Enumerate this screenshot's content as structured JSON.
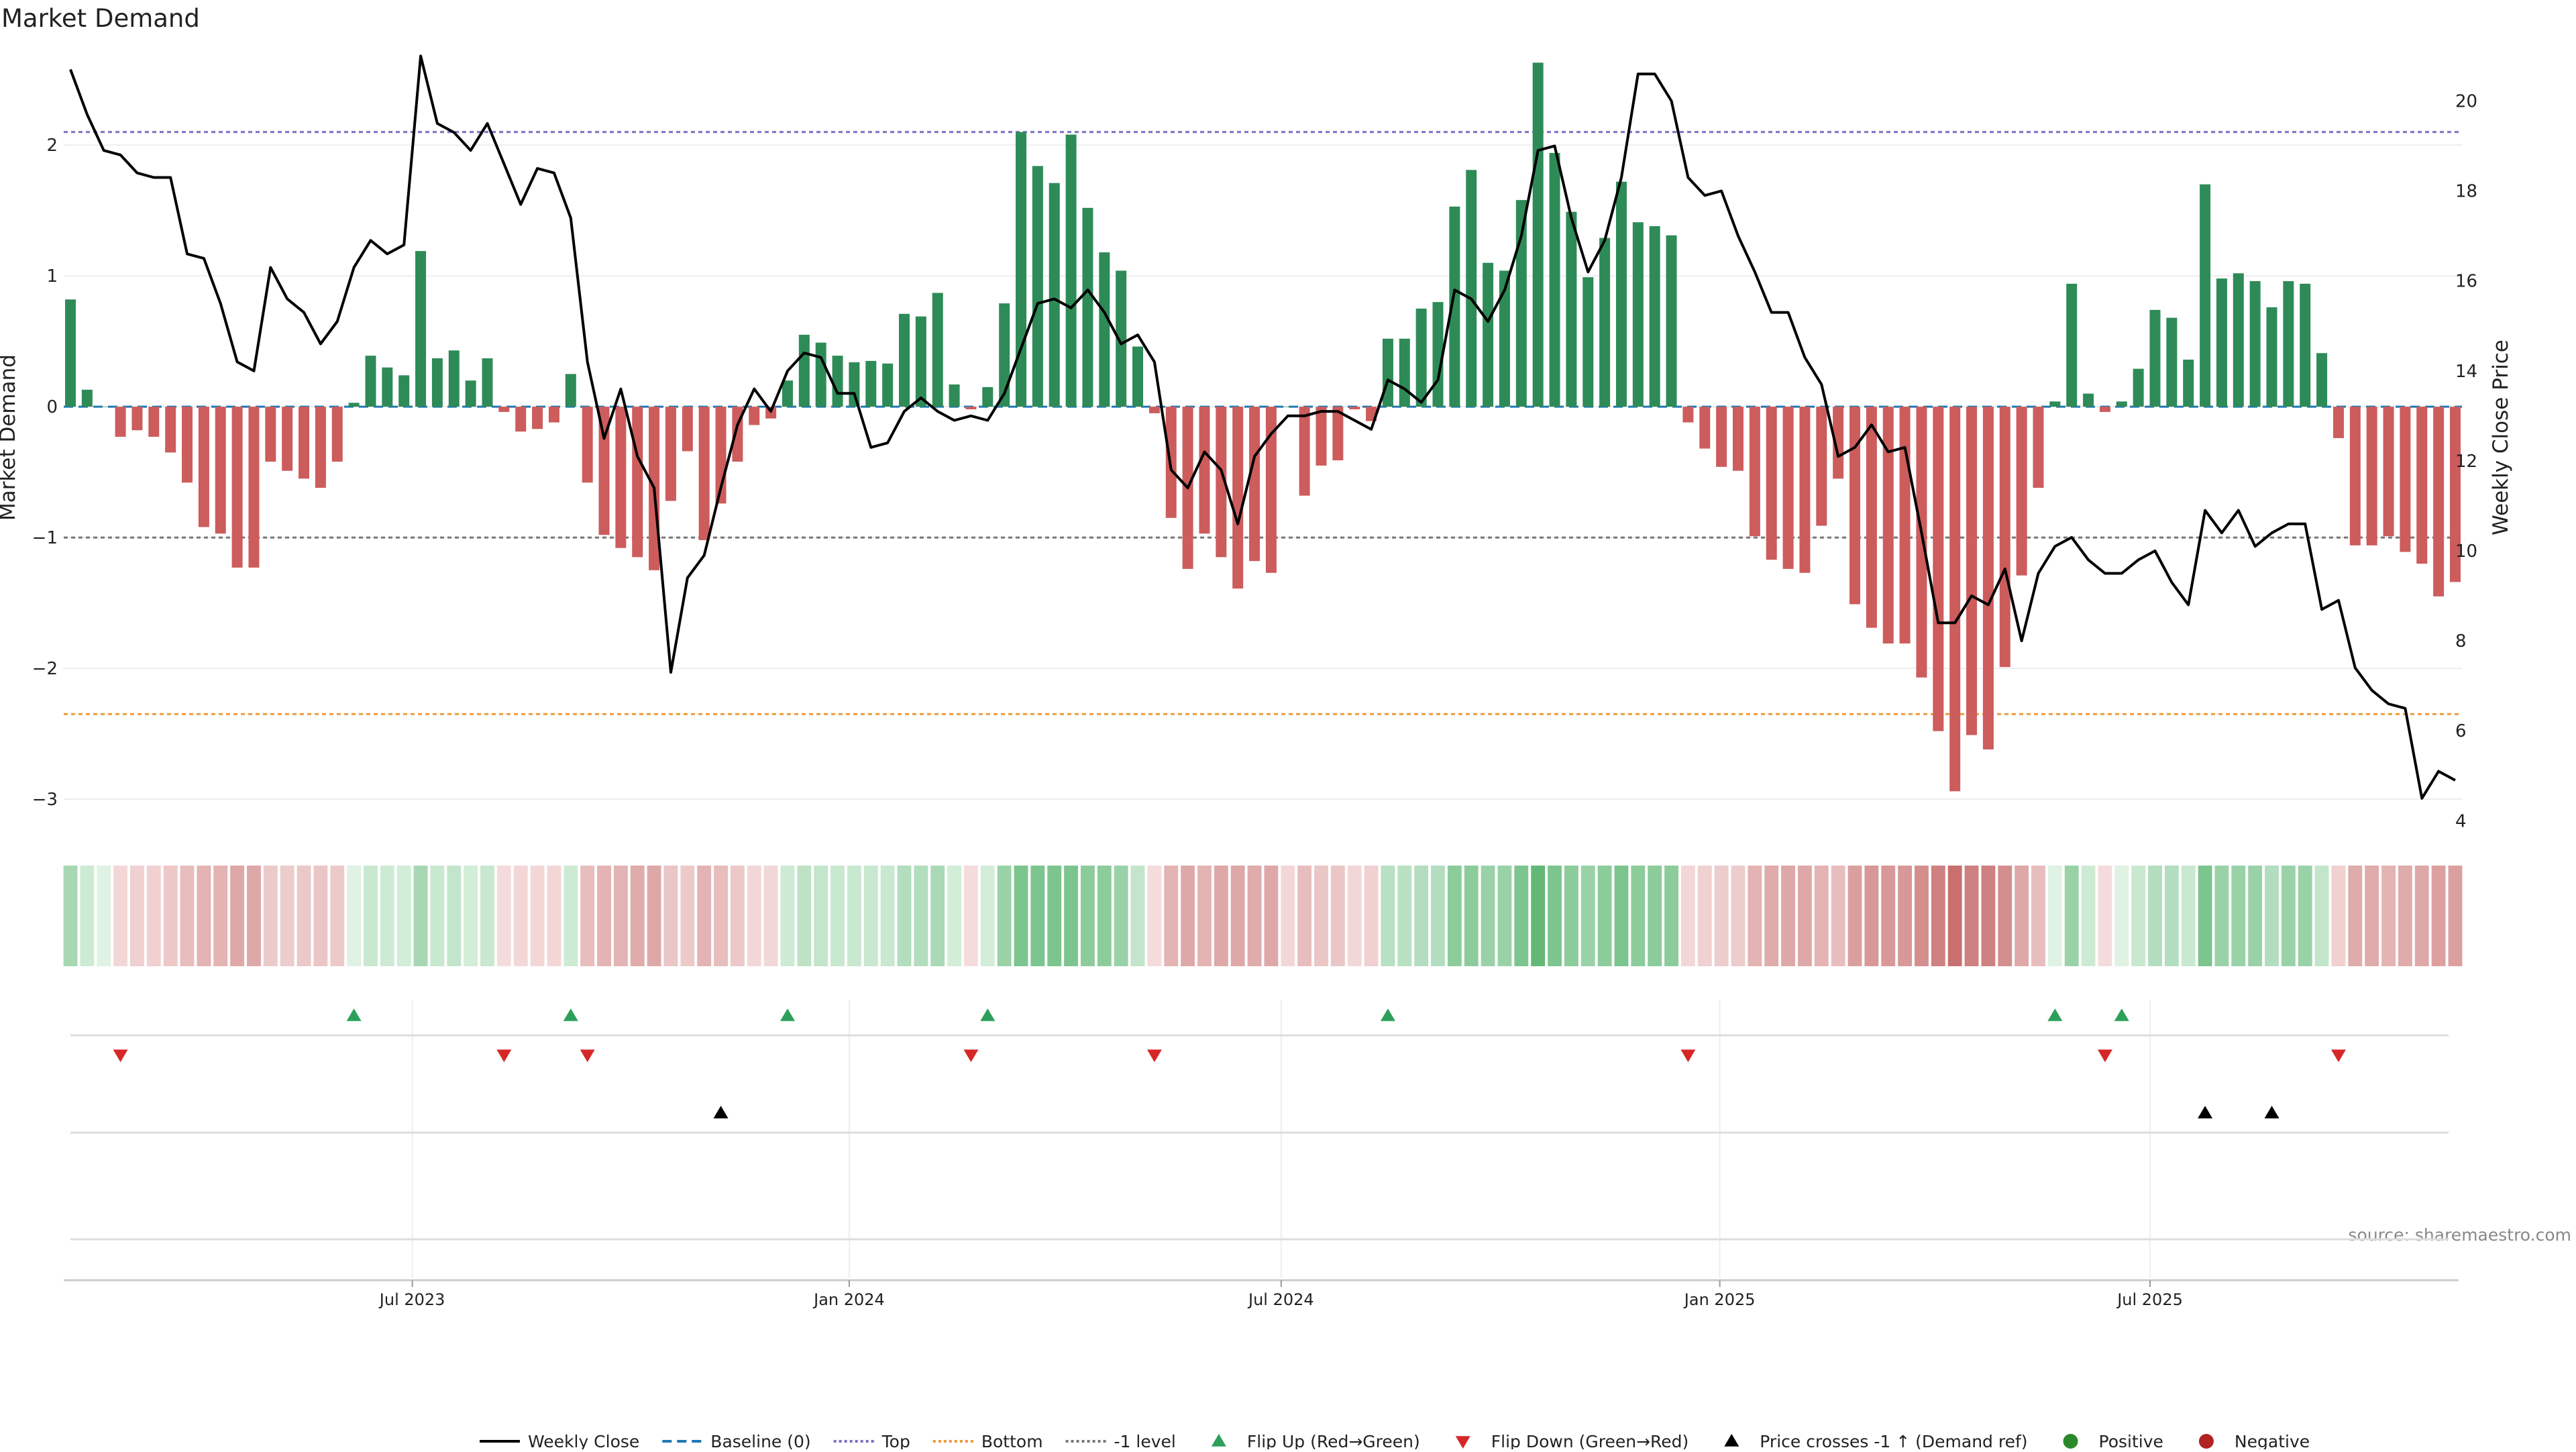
{
  "chart_data": {
    "type": "bar",
    "title": "Market Demand",
    "ylabel": "Market Demand",
    "y2label": "Weekly Close Price",
    "ylim": [
      -3.2,
      2.75
    ],
    "y2lim": [
      3.9,
      21.2
    ],
    "yticks": [
      2,
      1,
      0,
      -1,
      -2,
      -3
    ],
    "ytick_labels": [
      "2",
      "1",
      "0",
      "−1",
      "−2",
      "−3"
    ],
    "y2ticks": [
      20,
      18,
      16,
      14,
      12,
      10,
      8,
      6,
      4
    ],
    "reference_lines": {
      "top": 2.1,
      "bottom": -2.35,
      "minus_one": -1,
      "baseline": 0
    },
    "x_ticks": [
      {
        "label": "Jul 2023",
        "week": 20.5
      },
      {
        "label": "Jan 2024",
        "week": 46.7
      },
      {
        "label": "Jul 2024",
        "week": 72.6
      },
      {
        "label": "Jan 2025",
        "week": 98.9
      },
      {
        "label": "Jul 2025",
        "week": 124.7
      }
    ],
    "demand": [
      0.82,
      0.13,
      0.0,
      -0.23,
      -0.18,
      -0.23,
      -0.35,
      -0.58,
      -0.92,
      -0.97,
      -1.23,
      -1.23,
      -0.42,
      -0.49,
      -0.55,
      -0.62,
      -0.42,
      0.03,
      0.39,
      0.3,
      0.24,
      1.19,
      0.37,
      0.43,
      0.2,
      0.37,
      -0.04,
      -0.19,
      -0.17,
      -0.12,
      0.25,
      -0.58,
      -0.98,
      -1.08,
      -1.15,
      -1.25,
      -0.72,
      -0.34,
      -1.02,
      -0.74,
      -0.42,
      -0.14,
      -0.09,
      0.2,
      0.55,
      0.49,
      0.39,
      0.34,
      0.35,
      0.33,
      0.71,
      0.69,
      0.87,
      0.17,
      -0.02,
      0.15,
      0.79,
      2.1,
      1.84,
      1.71,
      2.08,
      1.52,
      1.18,
      1.04,
      0.46,
      -0.05,
      -0.85,
      -1.24,
      -0.97,
      -1.15,
      -1.39,
      -1.18,
      -1.27,
      0.0,
      -0.68,
      -0.45,
      -0.41,
      -0.02,
      -0.11,
      0.52,
      0.52,
      0.75,
      0.8,
      1.53,
      1.81,
      1.1,
      1.04,
      1.58,
      2.63,
      1.94,
      1.49,
      0.99,
      1.29,
      1.72,
      1.41,
      1.38,
      1.31,
      -0.12,
      -0.32,
      -0.46,
      -0.49,
      -0.99,
      -1.17,
      -1.24,
      -1.27,
      -0.91,
      -0.55,
      -1.51,
      -1.69,
      -1.81,
      -1.81,
      -2.07,
      -2.48,
      -2.94,
      -2.51,
      -2.62,
      -1.99,
      -1.29,
      -0.62,
      0.04,
      0.94,
      0.1,
      -0.04,
      0.04,
      0.29,
      0.74,
      0.68,
      0.36,
      1.7,
      0.98,
      1.02,
      0.96,
      0.76,
      0.96,
      0.94,
      0.41,
      -0.24,
      -1.06,
      -1.06,
      -0.99,
      -1.11,
      -1.2,
      -1.45,
      -1.34
    ],
    "price": [
      20.7,
      19.7,
      18.9,
      18.8,
      18.4,
      18.3,
      18.3,
      16.6,
      16.5,
      15.5,
      14.2,
      14.0,
      16.3,
      15.6,
      15.3,
      14.6,
      15.1,
      16.3,
      16.9,
      16.6,
      16.8,
      21.0,
      19.5,
      19.3,
      18.9,
      19.5,
      18.6,
      17.7,
      18.5,
      18.4,
      17.4,
      14.2,
      12.5,
      13.6,
      12.1,
      11.4,
      7.3,
      9.4,
      9.9,
      11.4,
      12.8,
      13.6,
      13.1,
      14.0,
      14.4,
      14.3,
      13.5,
      13.5,
      12.3,
      12.4,
      13.1,
      13.4,
      13.1,
      12.9,
      13.0,
      12.9,
      13.5,
      14.5,
      15.5,
      15.6,
      15.4,
      15.8,
      15.3,
      14.6,
      14.8,
      14.2,
      11.8,
      11.4,
      12.2,
      11.8,
      10.6,
      12.1,
      12.6,
      13.0,
      13.0,
      13.1,
      13.1,
      12.9,
      12.7,
      13.8,
      13.6,
      13.3,
      13.8,
      15.8,
      15.6,
      15.1,
      15.8,
      17.0,
      18.9,
      19.0,
      17.4,
      16.2,
      16.9,
      18.3,
      20.6,
      20.6,
      20.0,
      18.3,
      17.9,
      18.0,
      17.0,
      16.2,
      15.3,
      15.3,
      14.3,
      13.7,
      12.1,
      12.3,
      12.8,
      12.2,
      12.3,
      10.4,
      8.4,
      8.4,
      9.0,
      8.8,
      9.6,
      8.0,
      9.5,
      10.1,
      10.3,
      9.8,
      9.5,
      9.5,
      9.8,
      10.0,
      9.3,
      8.8,
      10.9,
      10.4,
      10.9,
      10.1,
      10.4,
      10.6,
      10.6,
      8.7,
      8.9,
      7.4,
      6.9,
      6.6,
      6.5,
      4.5,
      5.1,
      4.9
    ],
    "strip_shades": [
      "#a7d8b3",
      "#cdebd4",
      "#dff2e3",
      "#f3d7d7",
      "#f0d0d0",
      "#f0d0d0",
      "#eec8c8",
      "#e8bdbd",
      "#e4b3b3",
      "#e4b3b3",
      "#dfa8a8",
      "#dfa8a8",
      "#edcaca",
      "#eccccc",
      "#ecc8c8",
      "#eac6c6",
      "#edcaca",
      "#dff2e3",
      "#c8e8cf",
      "#cdebd4",
      "#d2edd8",
      "#a7d8b3",
      "#c8e8cf",
      "#c3e5cb",
      "#d2edd8",
      "#c8e8cf",
      "#f5dcdc",
      "#f3d7d7",
      "#f3d7d7",
      "#f3d7d7",
      "#cdebd4",
      "#e8bdbd",
      "#e4b3b3",
      "#e4b3b3",
      "#e0abab",
      "#dfa8a8",
      "#eac6c6",
      "#edcaca",
      "#e4b3b3",
      "#e8bdbd",
      "#ecc8c8",
      "#f3d7d7",
      "#f3d7d7",
      "#cdebd4",
      "#bde2c6",
      "#c3e5cb",
      "#c8e8cf",
      "#c8e8cf",
      "#c8e8cf",
      "#c8e8cf",
      "#b3ddbf",
      "#b3ddbf",
      "#aad9b6",
      "#d2edd8",
      "#f5dcdc",
      "#d2edd8",
      "#9ad2a8",
      "#7cc58e",
      "#7cc58e",
      "#7cc58e",
      "#7cc58e",
      "#8ccc9b",
      "#8ccc9b",
      "#9ad2a8",
      "#c3e5cb",
      "#f5dcdc",
      "#e4b3b3",
      "#dfa8a8",
      "#e4b3b3",
      "#dfa8a8",
      "#dfa8a8",
      "#e0abab",
      "#dfa8a8",
      "#f3d7d7",
      "#e8bdbd",
      "#eac6c6",
      "#eac6c6",
      "#f3d7d7",
      "#f0d0d0",
      "#b8e0c2",
      "#b8e0c2",
      "#b3ddbf",
      "#b3ddbf",
      "#8ccc9b",
      "#8ccc9b",
      "#9ad2a8",
      "#9ad2a8",
      "#7cc58e",
      "#63b878",
      "#7cc58e",
      "#8ccc9b",
      "#9ad2a8",
      "#8ccc9b",
      "#7cc58e",
      "#8ccc9b",
      "#8ccc9b",
      "#8ccc9b",
      "#f3d7d7",
      "#f0d0d0",
      "#eccccc",
      "#eccccc",
      "#e4b3b3",
      "#e0abab",
      "#dfa8a8",
      "#dfa8a8",
      "#e4b3b3",
      "#e8bdbd",
      "#dc9f9f",
      "#d89898",
      "#d89898",
      "#d89898",
      "#d48e8e",
      "#cf8080",
      "#c96f6f",
      "#cf8080",
      "#cf8080",
      "#d48e8e",
      "#dfa8a8",
      "#e8bdbd",
      "#dff2e3",
      "#9ad2a8",
      "#cdebd4",
      "#f5dcdc",
      "#dff2e3",
      "#c8e8cf",
      "#b3ddbf",
      "#b3ddbf",
      "#c8e8cf",
      "#7cc58e",
      "#9ad2a8",
      "#9ad2a8",
      "#9ad2a8",
      "#b3ddbf",
      "#9ad2a8",
      "#9ad2a8",
      "#c3e5cb",
      "#f0d0d0",
      "#e0abab",
      "#e0abab",
      "#e4b3b3",
      "#e0abab",
      "#dfa8a8",
      "#dca0a0",
      "#dca0a0"
    ],
    "flip_up_weeks": [
      17,
      30,
      43,
      55,
      79,
      119,
      123
    ],
    "flip_down_weeks": [
      3,
      26,
      31,
      54,
      65,
      97,
      122,
      136
    ],
    "price_cross_weeks": [
      39,
      128,
      132
    ],
    "source": "source: sharemaestro.com",
    "legend": [
      {
        "label": "Weekly Close",
        "kind": "line",
        "color": "#000000",
        "dash": ""
      },
      {
        "label": "Baseline (0)",
        "kind": "line",
        "color": "#1f77b4",
        "dash": "14,8"
      },
      {
        "label": "Top",
        "kind": "line",
        "color": "#7b6fc4",
        "dash": "4,4"
      },
      {
        "label": "Bottom",
        "kind": "line",
        "color": "#ee9a3a",
        "dash": "4,4"
      },
      {
        "label": "-1 level",
        "kind": "line",
        "color": "#777777",
        "dash": "4,4"
      },
      {
        "label": "Flip Up (Red→Green)",
        "kind": "tri-up",
        "color": "#2ca05a"
      },
      {
        "label": "Flip Down (Green→Red)",
        "kind": "tri-down",
        "color": "#d62728"
      },
      {
        "label": "Price crosses -1 ↑ (Demand ref)",
        "kind": "tri-up",
        "color": "#000000"
      },
      {
        "label": "Positive",
        "kind": "dot",
        "color": "#2a8a2a"
      },
      {
        "label": "Negative",
        "kind": "dot",
        "color": "#b22222"
      }
    ]
  },
  "colors": {
    "positive_bar": "#2e8b57",
    "negative_bar": "#cd5c5c",
    "price_line": "#000000",
    "top_line": "#7b6fc4",
    "bottom_line": "#ee9a3a",
    "minus_one_line": "#777777",
    "baseline": "#1f77b4"
  }
}
